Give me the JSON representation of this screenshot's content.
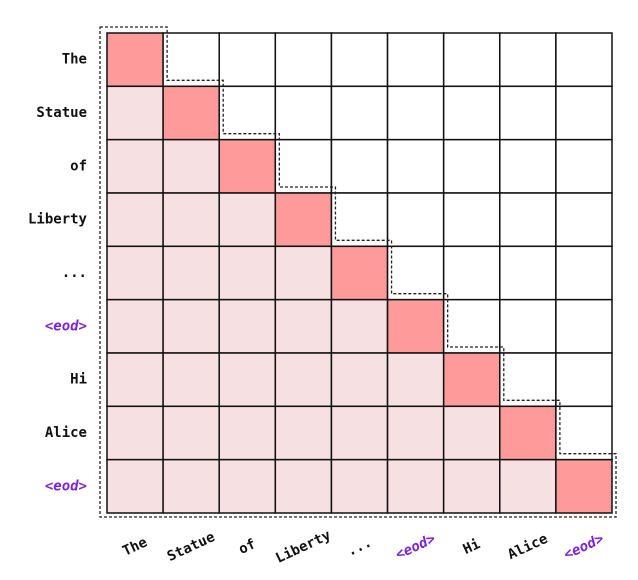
{
  "row_labels": [
    {
      "text": "The"
    },
    {
      "text": "Statue"
    },
    {
      "text": "of"
    },
    {
      "text": "Liberty"
    },
    {
      "text": "..."
    },
    {
      "text": "<eod>",
      "color": "#7a22e0"
    },
    {
      "text": "Hi"
    },
    {
      "text": "Alice"
    },
    {
      "text": "<eod>",
      "color": "#7a22e0"
    }
  ],
  "column_labels": [
    {
      "text": "The"
    },
    {
      "text": "Statue"
    },
    {
      "text": "of"
    },
    {
      "text": "Liberty"
    },
    {
      "text": "..."
    },
    {
      "text": "<eod>",
      "color": "#7a22e0"
    },
    {
      "text": "Hi"
    },
    {
      "text": "Alice"
    },
    {
      "text": "<eod>",
      "color": "#7a22e0"
    }
  ],
  "cell_colors": {
    "diagonal": "#fe9a9a",
    "below": "#f7e0e2",
    "above": "#ffffff"
  }
}
